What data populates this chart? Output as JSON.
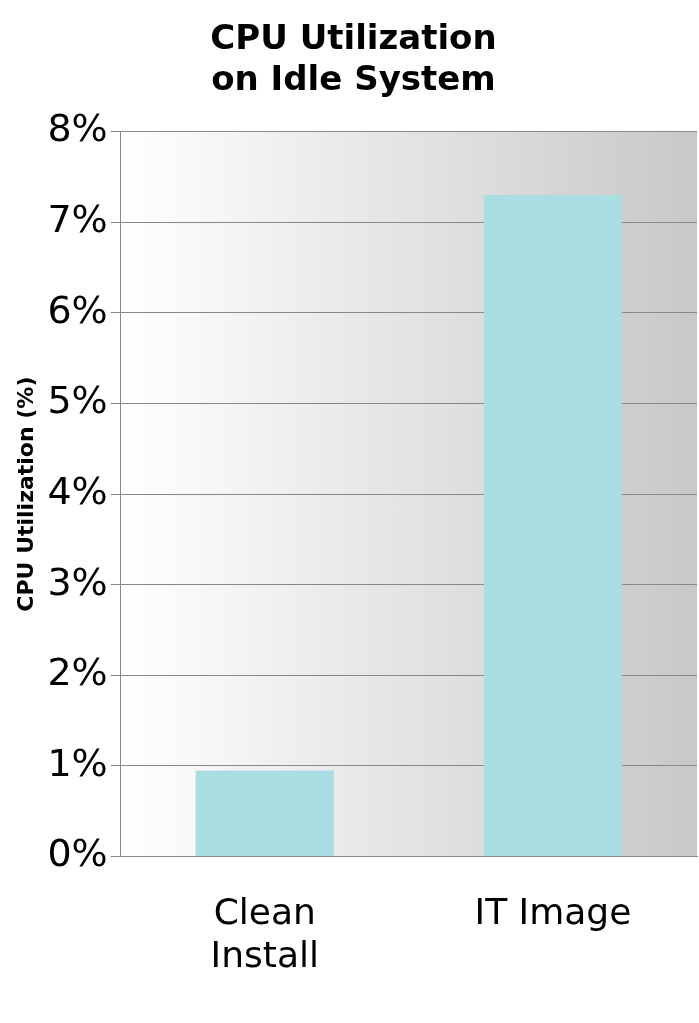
{
  "chart_data": {
    "type": "bar",
    "title": "CPU Utilization on Idle System",
    "ylabel": "CPU Utilization (%)",
    "categories": [
      "Clean Install",
      "IT Image"
    ],
    "values": [
      0.95,
      7.3
    ],
    "color": "#a9dfe3",
    "ylim": [
      0,
      8
    ],
    "yticks": [
      {
        "value": 0,
        "label": "0%"
      },
      {
        "value": 1,
        "label": "1%"
      },
      {
        "value": 2,
        "label": "2%"
      },
      {
        "value": 3,
        "label": "3%"
      },
      {
        "value": 4,
        "label": "4%"
      },
      {
        "value": 5,
        "label": "5%"
      },
      {
        "value": 6,
        "label": "6%"
      },
      {
        "value": 7,
        "label": "7%"
      },
      {
        "value": 8,
        "label": "8%"
      }
    ],
    "grid": "y",
    "legend": false
  }
}
